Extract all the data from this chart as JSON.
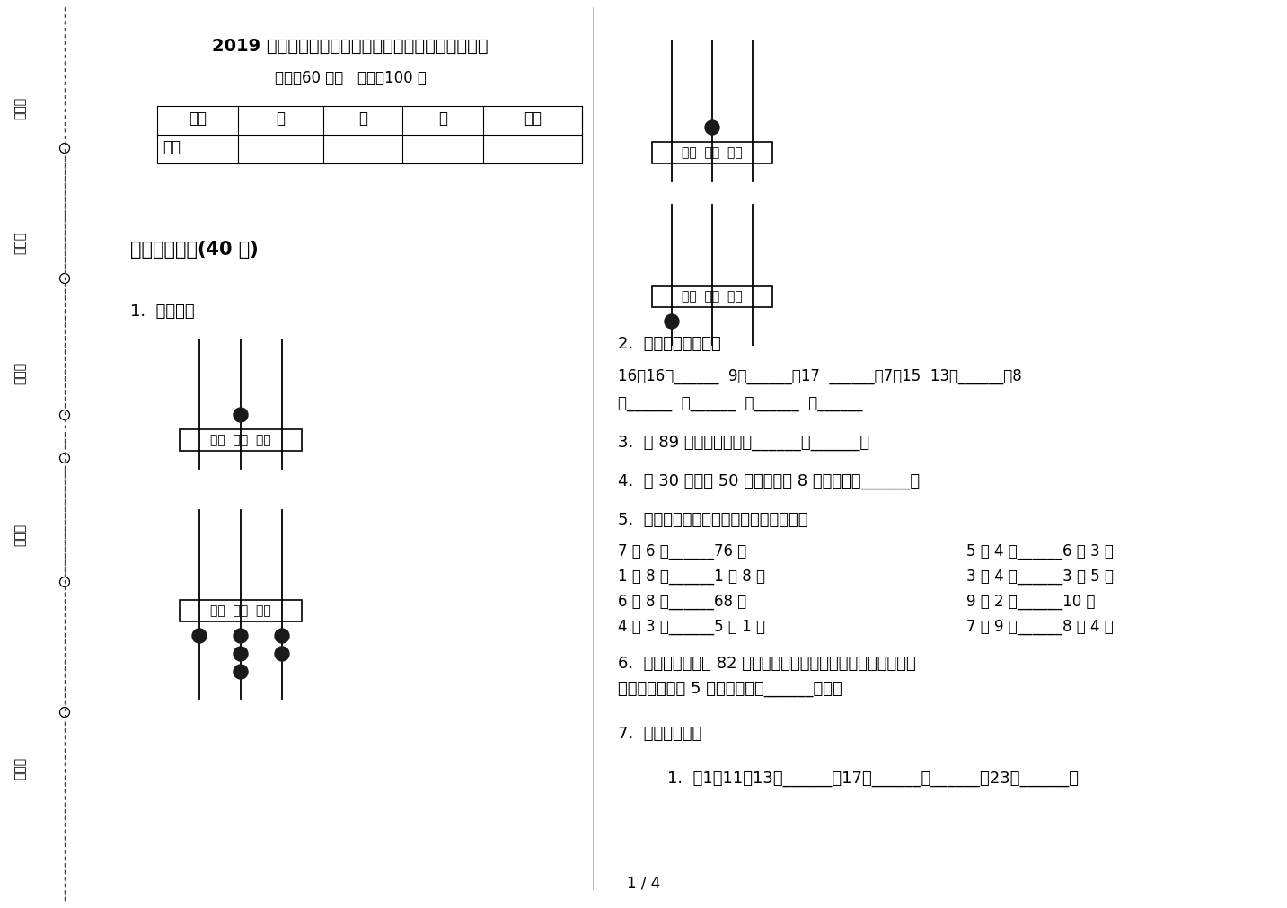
{
  "title": "2019 年复习测试强化训练一年级下屦期数学期末试卷",
  "subtitle": "时间：60 分钟   满分：100 分",
  "bg_color": "#ffffff",
  "page_label": "1 / 4",
  "table_headers": [
    "题号",
    "一",
    "二",
    "三",
    "总分"
  ],
  "table_row2": "得分",
  "section1_title": "一、基础练习(40 分)",
  "q1_label": "1.  看图写数",
  "q2_label": "2.  算一算，填一填：",
  "q2_line1": "16－16＝______  9＋______＝17  ______－7＝15  13－______＝8",
  "q2_line2": "求______  求______  求______  求______",
  "q3_label": "3.  和 89 相邻的两个数是______和______。",
  "q4_label": "4.  比 30 大，比 50 小，个位是 8 的数可能是______。",
  "q5_label": "5.  在横线上填上「＞」「＜」或「＝」。",
  "q5_rows": [
    [
      "7 元 6 角______76 角",
      "5 元 4 角______6 元 3 角"
    ],
    [
      "1 元 8 角______1 角 8 分",
      "3 元 4 角______3 元 5 角"
    ],
    [
      "6 元 8 角______68 角",
      "9 元 2 角______10 元"
    ],
    [
      "4 角 3 分______5 角 1 分",
      "7 角 9 分______8 元 4 角"
    ]
  ],
  "q6_line1": "6.  本学期小宁得了 82 朵花，是班里的第一名，小齐是第二名，",
  "q6_line2": "得的花比小宁少 5 朵，小齐得了______朵花。",
  "q7_label": "7.  找规律填数。",
  "q7_sub": "1.  （1）11，13，______，17，______，______，23，______，",
  "sidebar_labels": [
    "考号：",
    "考场：",
    "姓名：",
    "班级：",
    "学校："
  ],
  "abacus_box_label": "百位  十位  个位"
}
